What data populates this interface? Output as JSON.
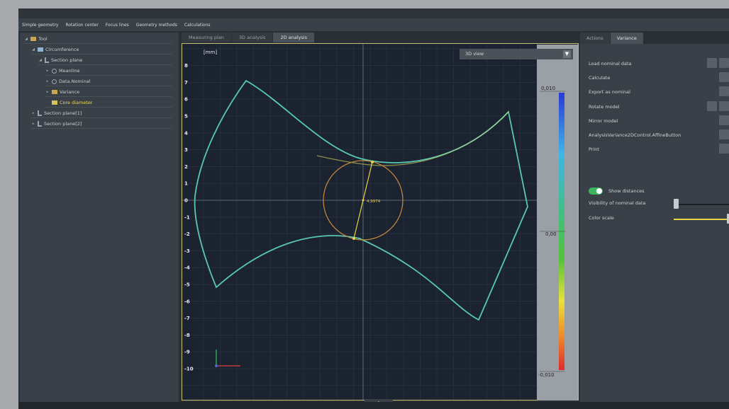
{
  "menu": [
    "Simple geometry",
    "Rotation center",
    "Focus lines",
    "Geometry methods",
    "Calculations"
  ],
  "tree": [
    {
      "label": "Tool",
      "level": 0,
      "arrow": "◢",
      "icon": "folder"
    },
    {
      "label": "Circumference",
      "level": 1,
      "arrow": "◢",
      "icon": "curve"
    },
    {
      "label": "Section plane",
      "level": 2,
      "arrow": "◢",
      "icon": "plane"
    },
    {
      "label": "Meanline",
      "level": 3,
      "arrow": "▸",
      "icon": "circle"
    },
    {
      "label": "Data.Nominal",
      "level": 3,
      "arrow": "▸",
      "icon": "circle"
    },
    {
      "label": "Variance",
      "level": 3,
      "arrow": "▸",
      "icon": "folder"
    },
    {
      "label": "Core diameter",
      "level": 3,
      "arrow": "",
      "icon": "measure",
      "highlight": true
    },
    {
      "label": "Section plane[1]",
      "level": 1,
      "arrow": "▸",
      "icon": "plane"
    },
    {
      "label": "Section plane[2]",
      "level": 1,
      "arrow": "▸",
      "icon": "plane"
    }
  ],
  "tabs": [
    {
      "label": "Measuring plan",
      "active": false
    },
    {
      "label": "3D analysis",
      "active": false
    },
    {
      "label": "2D analysis",
      "active": true
    }
  ],
  "view_select": {
    "value": "3D view",
    "dd": "▼"
  },
  "plot": {
    "unit": "[mm]",
    "y_ticks": [
      8,
      7,
      6,
      5,
      4,
      3,
      2,
      1,
      0,
      -1,
      -2,
      -3,
      -4,
      -5,
      -6,
      -7,
      -8,
      -9,
      -10
    ],
    "measurement": "4,9974"
  },
  "color_scale": {
    "max": "0,010",
    "mid": "0,00",
    "min": "-0,010"
  },
  "bottom_value": "0",
  "right_tabs": [
    {
      "label": "Actions",
      "active": false
    },
    {
      "label": "Variance",
      "active": true
    }
  ],
  "right_items": [
    "Load nominal data",
    "Calculate",
    "Export as nominal",
    "Rotate model",
    "Mirror model",
    "AnalysisVariance2DControl.AffineButton",
    "Print"
  ],
  "show_distances": "Show distances",
  "visibility_label": "Visibility of nominal data",
  "color_scale_label": "Color scale",
  "colors": {
    "accent": "#e8d24a",
    "curve": "#5fd0b8",
    "circle": "#d08a3c",
    "toggle": "#3fb45f"
  }
}
